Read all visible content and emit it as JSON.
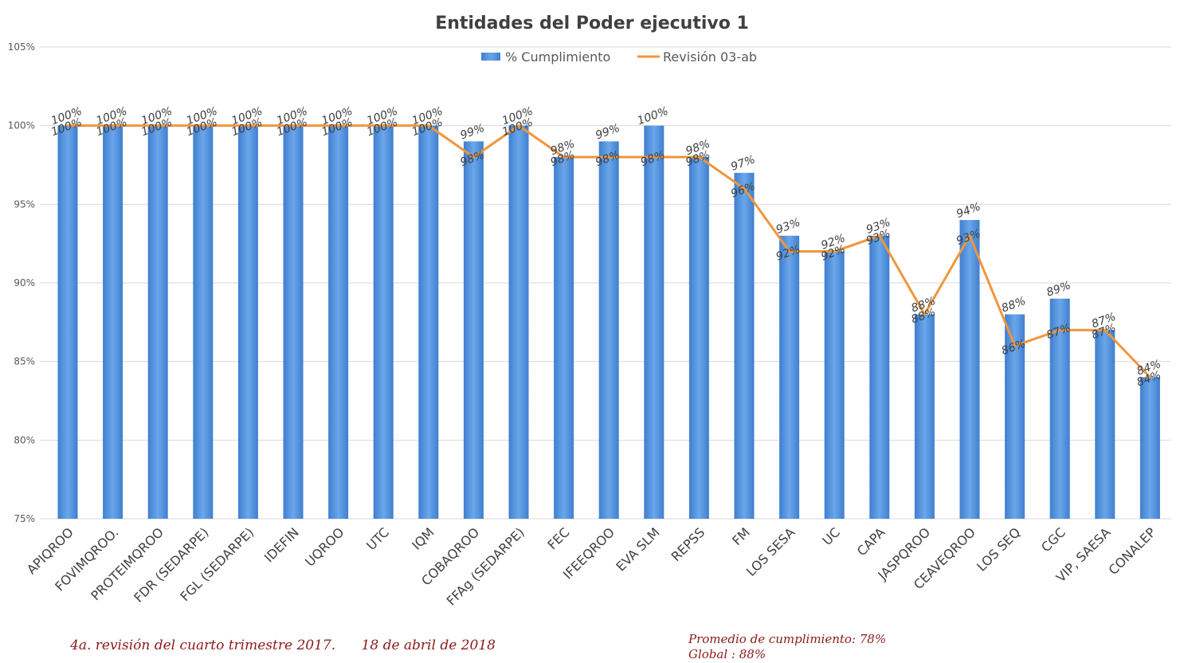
{
  "chart_data": {
    "type": "bar",
    "title": "Entidades del Poder ejecutivo 1",
    "categories": [
      "APIQROO",
      "FOVIMQROO.",
      "PROTEIMQROO",
      "FDR (SEDARPE)",
      "FGL (SEDARPE)",
      "IDEFIN",
      "UQROO",
      "UTC",
      "IQM",
      "COBAQROO",
      "FFAg (SEDARPE)",
      "FEC",
      "IFEEQROO",
      "EVA SLM",
      "REPSS",
      "FM",
      "LOS SESA",
      "UC",
      "CAPA",
      "JASPQROO",
      "CEAVEQROO",
      "LOS SEQ",
      "CGC",
      "VIP, SAESA",
      "CONALEP"
    ],
    "series": [
      {
        "name": "% Cumplimiento",
        "type": "bar",
        "color": "#4f8fd9",
        "values": [
          100,
          100,
          100,
          100,
          100,
          100,
          100,
          100,
          100,
          99,
          100,
          98,
          99,
          100,
          98,
          97,
          93,
          92,
          93,
          88,
          94,
          88,
          89,
          87,
          84
        ]
      },
      {
        "name": "Revisión  03-ab",
        "type": "line",
        "color": "#f0963c",
        "values": [
          100,
          100,
          100,
          100,
          100,
          100,
          100,
          100,
          100,
          98,
          100,
          98,
          98,
          98,
          98,
          96,
          92,
          92,
          93,
          88,
          93,
          86,
          87,
          87,
          84
        ]
      }
    ],
    "ylim": [
      75,
      105
    ],
    "yticks": [
      "75%",
      "80%",
      "85%",
      "90%",
      "95%",
      "100%",
      "105%"
    ],
    "grid": true,
    "legend": "top-center"
  },
  "footer": {
    "left": "4a. revisión del cuarto trimestre 2017.      18 de abril de 2018",
    "promedio": "Promedio de cumplimiento: 78%",
    "global": "Global : 88%"
  }
}
